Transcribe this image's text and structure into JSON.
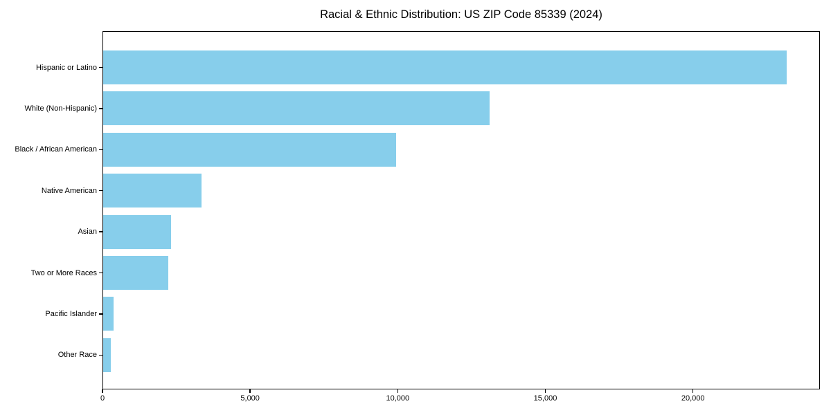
{
  "title": "Racial & Ethnic Distribution: US ZIP Code 85339 (2024)",
  "colors": {
    "bar": "#87CEEB",
    "axis": "#000000",
    "background": "#FFFFFF",
    "text": "#000000"
  },
  "chart_data": {
    "type": "bar",
    "orientation": "horizontal",
    "title": "Racial & Ethnic Distribution: US ZIP Code 85339 (2024)",
    "categories": [
      "Hispanic or Latino",
      "White (Non-Hispanic)",
      "Black / African American",
      "Native American",
      "Asian",
      "Two or More Races",
      "Pacific Islander",
      "Other Race"
    ],
    "values": [
      23150,
      13080,
      9920,
      3320,
      2310,
      2210,
      350,
      250
    ],
    "xlabel": "",
    "ylabel": "",
    "xlim": [
      0,
      24300
    ],
    "xticks": [
      0,
      5000,
      10000,
      15000,
      20000
    ],
    "xtick_labels": [
      "0",
      "5,000",
      "10,000",
      "15,000",
      "20,000"
    ],
    "grid": false,
    "legend": null,
    "bar_color": "#87CEEB"
  }
}
